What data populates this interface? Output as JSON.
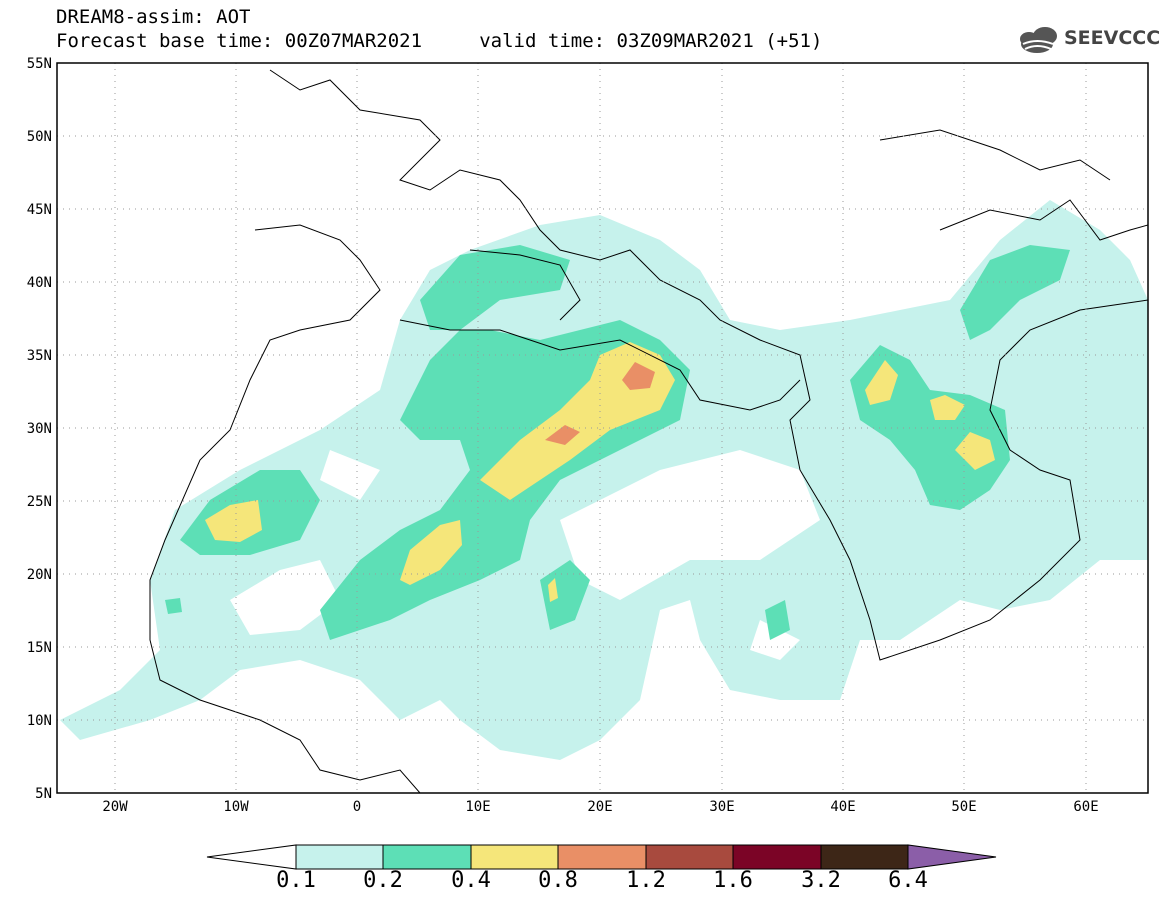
{
  "header": {
    "line1": "DREAM8-assim: AOT",
    "line2": "Forecast base time: 00Z07MAR2021     valid time: 03Z09MAR2021 (+51)",
    "logo_text": "SEEVCCC"
  },
  "map": {
    "lon_range": [
      -25,
      65
    ],
    "lat_range": [
      5,
      55
    ],
    "lat_labels": [
      "55N",
      "50N",
      "45N",
      "40N",
      "35N",
      "30N",
      "25N",
      "20N",
      "15N",
      "10N",
      "5N"
    ],
    "lon_labels": [
      "20W",
      "10W",
      "0",
      "10E",
      "20E",
      "30E",
      "40E",
      "50E",
      "60E"
    ]
  },
  "colorbar": {
    "colors": [
      "#c6f2ec",
      "#5ddfb6",
      "#f5e67a",
      "#e98f66",
      "#a84a3e",
      "#7b0426",
      "#3d2617",
      "#8b5ea8"
    ],
    "levels": [
      "0.1",
      "0.2",
      "0.4",
      "0.8",
      "1.2",
      "1.6",
      "3.2",
      "6.4"
    ]
  }
}
